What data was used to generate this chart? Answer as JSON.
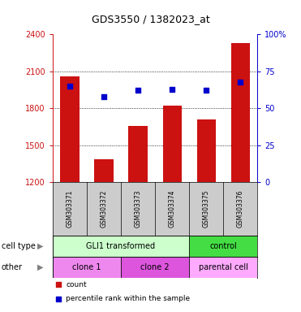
{
  "title": "GDS3550 / 1382023_at",
  "samples": [
    "GSM303371",
    "GSM303372",
    "GSM303373",
    "GSM303374",
    "GSM303375",
    "GSM303376"
  ],
  "counts": [
    2060,
    1390,
    1660,
    1820,
    1710,
    2330
  ],
  "count_base": 1200,
  "percentile_ranks": [
    65,
    58,
    62,
    63,
    62,
    68
  ],
  "ylim_left": [
    1200,
    2400
  ],
  "ylim_right": [
    0,
    100
  ],
  "yticks_left": [
    1200,
    1500,
    1800,
    2100,
    2400
  ],
  "yticks_right": [
    0,
    25,
    50,
    75,
    100
  ],
  "ytick_labels_right": [
    "0",
    "25",
    "50",
    "75",
    "100%"
  ],
  "bar_color": "#cc1111",
  "dot_color": "#0000cc",
  "bar_width": 0.55,
  "cell_type_groups": [
    {
      "label": "GLI1 transformed",
      "start": 0,
      "end": 4,
      "color": "#ccffcc"
    },
    {
      "label": "control",
      "start": 4,
      "end": 6,
      "color": "#44dd44"
    }
  ],
  "other_groups": [
    {
      "label": "clone 1",
      "start": 0,
      "end": 2,
      "color": "#ee88ee"
    },
    {
      "label": "clone 2",
      "start": 2,
      "end": 4,
      "color": "#dd55dd"
    },
    {
      "label": "parental cell",
      "start": 4,
      "end": 6,
      "color": "#ffaaff"
    }
  ],
  "cell_type_label": "cell type",
  "other_label": "other",
  "legend_count_label": "count",
  "legend_pct_label": "percentile rank within the sample",
  "tick_color_left": "#cc1111",
  "tick_color_right": "#0000cc",
  "grid_color": "#000000",
  "bg_main": "#ffffff",
  "bg_sample_row": "#cccccc",
  "fig_width": 3.71,
  "fig_height": 3.84,
  "dpi": 100
}
